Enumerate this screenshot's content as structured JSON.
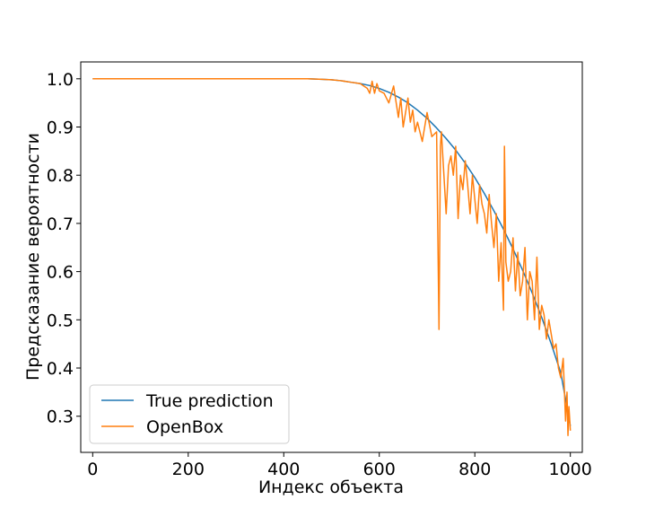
{
  "chart_data": {
    "type": "line",
    "title": "",
    "xlabel": "Индекс объекта",
    "ylabel": "Предсказание вероятности",
    "xlim": [
      -25,
      1025
    ],
    "ylim": [
      0.225,
      1.035
    ],
    "xticks": [
      0,
      200,
      400,
      600,
      800,
      1000
    ],
    "yticks": [
      0.3,
      0.4,
      0.5,
      0.6,
      0.7,
      0.8,
      0.9,
      1.0
    ],
    "xtick_labels": [
      "0",
      "200",
      "400",
      "600",
      "800",
      "1000"
    ],
    "ytick_labels": [
      "0.3",
      "0.4",
      "0.5",
      "0.6",
      "0.7",
      "0.8",
      "0.9",
      "1.0"
    ],
    "grid": false,
    "legend_position": "lower-left",
    "series": [
      {
        "name": "True prediction",
        "color": "#1f77b4",
        "x": [
          0,
          100,
          200,
          300,
          400,
          450,
          480,
          500,
          520,
          540,
          560,
          580,
          600,
          620,
          640,
          660,
          680,
          700,
          720,
          740,
          760,
          780,
          800,
          820,
          840,
          860,
          880,
          900,
          920,
          940,
          960,
          980,
          1000
        ],
        "y": [
          1.0,
          1.0,
          1.0,
          1.0,
          1.0,
          1.0,
          0.999,
          0.998,
          0.996,
          0.993,
          0.99,
          0.986,
          0.98,
          0.972,
          0.962,
          0.95,
          0.935,
          0.918,
          0.898,
          0.876,
          0.852,
          0.825,
          0.795,
          0.762,
          0.726,
          0.688,
          0.647,
          0.603,
          0.556,
          0.505,
          0.45,
          0.39,
          0.28
        ]
      },
      {
        "name": "OpenBox",
        "color": "#ff7f0e",
        "x": [
          0,
          100,
          200,
          300,
          400,
          450,
          480,
          500,
          520,
          540,
          560,
          575,
          580,
          585,
          590,
          595,
          600,
          610,
          620,
          630,
          640,
          645,
          650,
          660,
          665,
          670,
          675,
          680,
          690,
          700,
          710,
          720,
          725,
          728,
          730,
          740,
          745,
          750,
          755,
          760,
          765,
          770,
          775,
          780,
          785,
          790,
          795,
          800,
          805,
          810,
          815,
          820,
          825,
          830,
          835,
          840,
          845,
          850,
          855,
          860,
          862,
          865,
          870,
          875,
          880,
          885,
          890,
          895,
          900,
          905,
          910,
          915,
          920,
          925,
          930,
          935,
          940,
          945,
          950,
          955,
          960,
          965,
          970,
          975,
          980,
          985,
          990,
          993,
          995,
          997,
          1000
        ],
        "y": [
          1.0,
          1.0,
          1.0,
          1.0,
          1.0,
          1.0,
          0.999,
          0.998,
          0.996,
          0.993,
          0.99,
          0.98,
          0.97,
          0.995,
          0.97,
          0.99,
          0.975,
          0.97,
          0.95,
          0.985,
          0.92,
          0.96,
          0.9,
          0.96,
          0.91,
          0.935,
          0.89,
          0.91,
          0.87,
          0.93,
          0.88,
          0.89,
          0.48,
          0.86,
          0.89,
          0.72,
          0.82,
          0.84,
          0.8,
          0.86,
          0.71,
          0.8,
          0.77,
          0.83,
          0.78,
          0.72,
          0.8,
          0.75,
          0.7,
          0.78,
          0.74,
          0.72,
          0.68,
          0.76,
          0.7,
          0.65,
          0.72,
          0.58,
          0.66,
          0.52,
          0.86,
          0.62,
          0.58,
          0.6,
          0.67,
          0.56,
          0.64,
          0.55,
          0.58,
          0.65,
          0.5,
          0.6,
          0.58,
          0.5,
          0.63,
          0.48,
          0.53,
          0.51,
          0.46,
          0.5,
          0.47,
          0.44,
          0.45,
          0.4,
          0.38,
          0.42,
          0.29,
          0.35,
          0.26,
          0.32,
          0.27
        ]
      }
    ]
  }
}
